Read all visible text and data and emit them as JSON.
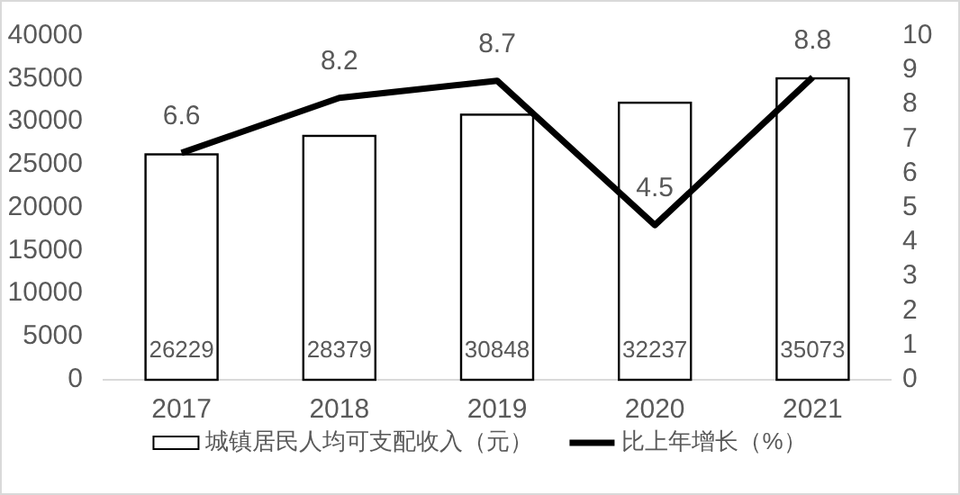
{
  "chart_data": {
    "type": "bar",
    "categories": [
      "2017",
      "2018",
      "2019",
      "2020",
      "2021"
    ],
    "series": [
      {
        "name": "城镇居民人均可支配收入（元）",
        "color": "#ffffff",
        "values": [
          26229,
          28379,
          30848,
          32237,
          35073
        ]
      },
      {
        "name": "比上年增长（%）",
        "type": "line",
        "axis": "y2",
        "color": "#000000",
        "values": [
          6.6,
          8.2,
          8.7,
          4.5,
          8.8
        ]
      }
    ],
    "ylim": [
      0,
      40000
    ],
    "yticks": [
      0,
      5000,
      10000,
      15000,
      20000,
      25000,
      30000,
      35000,
      40000
    ],
    "y2lim": [
      0,
      10
    ],
    "y2ticks": [
      0,
      1,
      2,
      3,
      4,
      5,
      6,
      7,
      8,
      9,
      10
    ],
    "data_labels": true,
    "legend": "bottom",
    "grid": false
  }
}
